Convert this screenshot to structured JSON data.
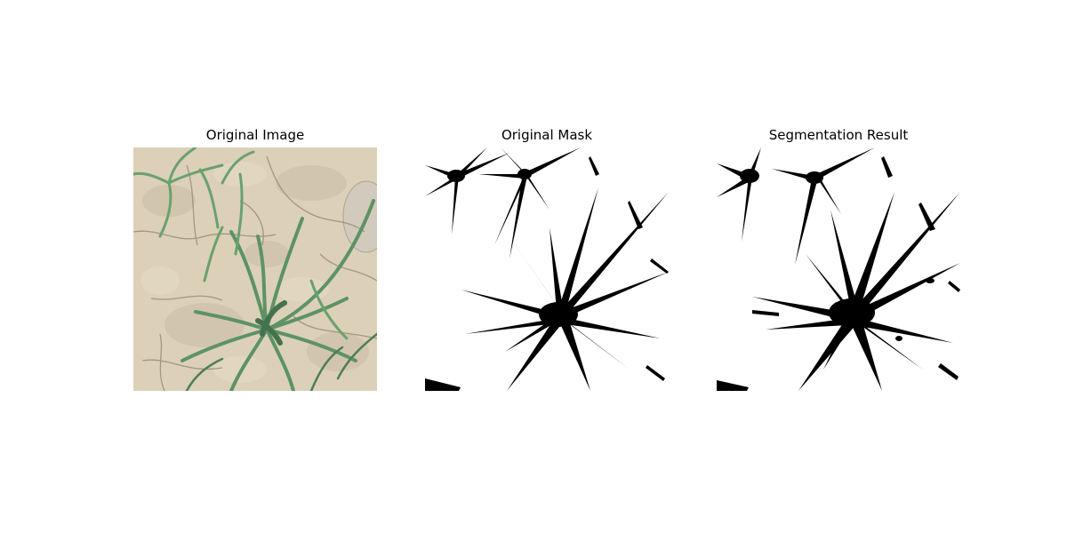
{
  "figure": {
    "panels": [
      {
        "title": "Original Image"
      },
      {
        "title": "Original Mask"
      },
      {
        "title": "Segmentation Result"
      }
    ],
    "colors": {
      "soil": "#d9ccb3",
      "soil_dark": "#b9aa8f",
      "crack": "#8e7f68",
      "leaf": "#4f8a57",
      "leaf_dark": "#36663f",
      "mask_fg": "#000000",
      "mask_bg": "#ffffff"
    }
  }
}
